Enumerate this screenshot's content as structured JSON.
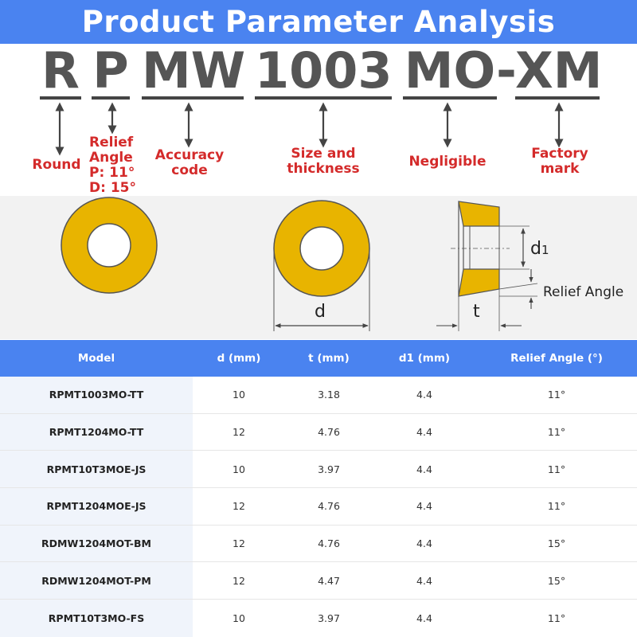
{
  "banner": {
    "title": "Product Parameter Analysis"
  },
  "code": {
    "segments": [
      "R",
      "P",
      "MW",
      "1003",
      "MO",
      "XM"
    ],
    "separator": "-"
  },
  "labels": {
    "round": "Round",
    "relief_angle": [
      "Relief",
      "Angle",
      "P: 11°",
      "D: 15°"
    ],
    "accuracy": [
      "Accuracy",
      "code"
    ],
    "size": [
      "Size and",
      "thickness"
    ],
    "negligible": "Negligible",
    "factory": [
      "Factory",
      "mark"
    ]
  },
  "diagram": {
    "d_label": "d",
    "t_label": "t",
    "d1_label": "d",
    "d1_subscript": "1",
    "relief_label": "Relief Angle",
    "insert_color": "#e8b400",
    "outline_color": "#555555"
  },
  "table": {
    "headers": [
      "Model",
      "d (mm)",
      "t (mm)",
      "d1 (mm)",
      "Relief Angle (°)"
    ],
    "rows": [
      [
        "RPMT1003MO-TT",
        "10",
        "3.18",
        "4.4",
        "11°"
      ],
      [
        "RPMT1204MO-TT",
        "12",
        "4.76",
        "4.4",
        "11°"
      ],
      [
        "RPMT10T3MOE-JS",
        "10",
        "3.97",
        "4.4",
        "11°"
      ],
      [
        "RPMT1204MOE-JS",
        "12",
        "4.76",
        "4.4",
        "11°"
      ],
      [
        "RDMW1204MOT-BM",
        "12",
        "4.76",
        "4.4",
        "15°"
      ],
      [
        "RDMW1204MOT-PM",
        "12",
        "4.47",
        "4.4",
        "15°"
      ],
      [
        "RPMT10T3MO-FS",
        "10",
        "3.97",
        "4.4",
        "11°"
      ]
    ]
  },
  "colors": {
    "banner": "#4a83f0",
    "label_red": "#d42b2b",
    "code_gray": "#555555"
  }
}
